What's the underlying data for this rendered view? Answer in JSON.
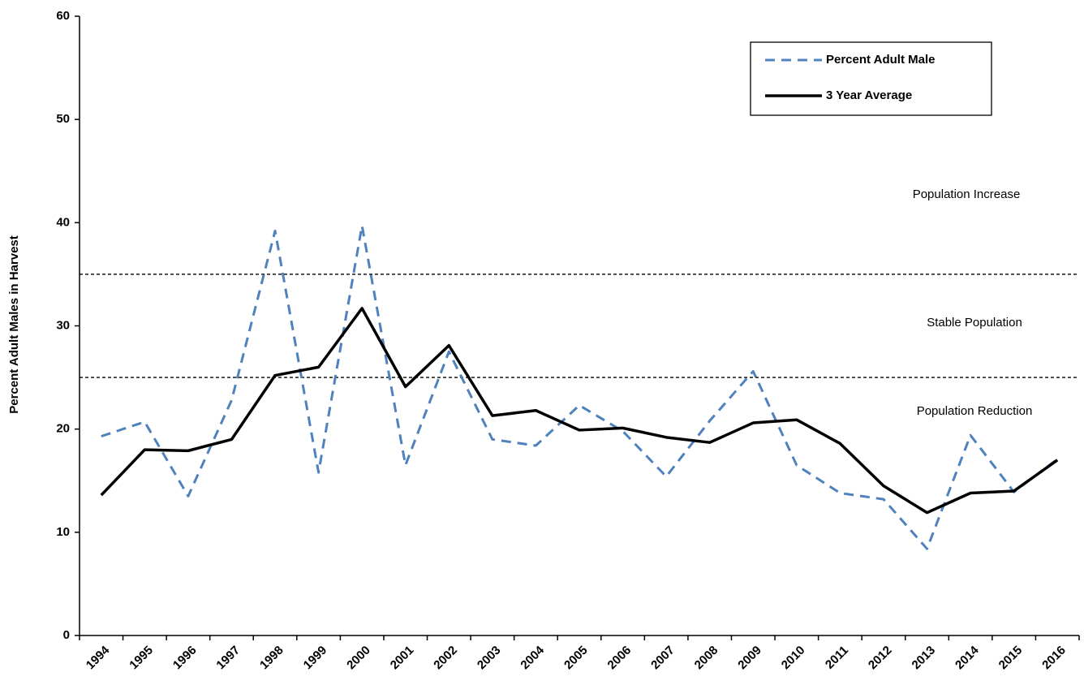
{
  "chart_data": {
    "type": "line",
    "y_label": "Percent Adult Males in Harvest",
    "categories": [
      "1994",
      "1995",
      "1996",
      "1997",
      "1998",
      "1999",
      "2000",
      "2001",
      "2002",
      "2003",
      "2004",
      "2005",
      "2006",
      "2007",
      "2008",
      "2009",
      "2010",
      "2011",
      "2012",
      "2013",
      "2014",
      "2015",
      "2016"
    ],
    "series": [
      {
        "name": "Percent Adult Male",
        "color": "#4f81bd",
        "dashed": true,
        "values": [
          19.3,
          20.7,
          13.5,
          22.8,
          39.2,
          15.8,
          39.7,
          16.5,
          27.5,
          19.0,
          18.4,
          22.3,
          19.8,
          15.4,
          20.8,
          25.6,
          16.5,
          13.8,
          13.2,
          8.4,
          19.4,
          13.9,
          17.1
        ]
      },
      {
        "name": "3 Year Average",
        "color": "#000000",
        "dashed": false,
        "values": [
          13.6,
          18.0,
          17.9,
          19.0,
          25.2,
          26.0,
          31.7,
          24.1,
          28.1,
          21.3,
          21.8,
          19.9,
          20.1,
          19.2,
          18.7,
          20.6,
          20.9,
          18.6,
          14.5,
          11.9,
          13.8,
          14.0,
          17.0
        ]
      }
    ],
    "reference_lines": [
      35,
      25
    ],
    "annotations": [
      "Population Increase",
      "Stable Population",
      "Population Reduction"
    ],
    "ylim": [
      0,
      60
    ],
    "yticks": [
      0,
      10,
      20,
      30,
      40,
      50,
      60
    ],
    "legend": "upper right",
    "grid": false
  }
}
